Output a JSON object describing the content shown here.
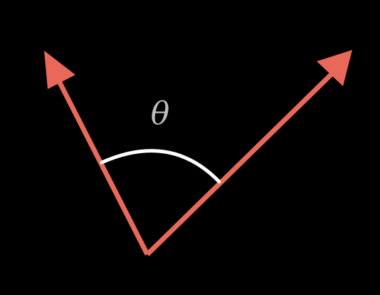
{
  "diagram": {
    "angle_label": "θ",
    "colors": {
      "background": "#000000",
      "vector": "#E8685A",
      "arc": "#FFFFFF",
      "label": "#BDBDBD"
    }
  }
}
